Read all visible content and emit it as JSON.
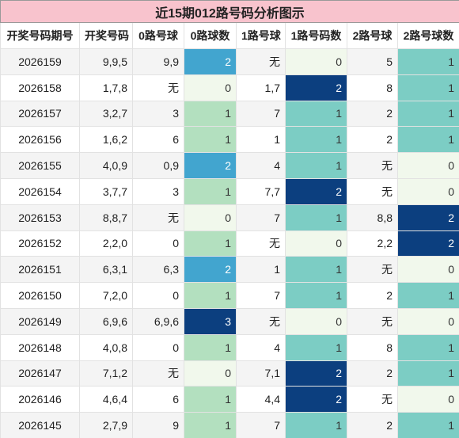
{
  "title": "近15期012路号码分析图示",
  "table": {
    "headers": [
      "开奖号码期号",
      "开奖号码",
      "0路号球",
      "0路球数",
      "1路号球",
      "1路号码数",
      "2路号球",
      "2路号球数"
    ],
    "rows": [
      [
        "2026159",
        "9,9,5",
        "9,9",
        2,
        "无",
        0,
        "5",
        1
      ],
      [
        "2026158",
        "1,7,8",
        "无",
        0,
        "1,7",
        2,
        "8",
        1
      ],
      [
        "2026157",
        "3,2,7",
        "3",
        1,
        "7",
        1,
        "2",
        1
      ],
      [
        "2026156",
        "1,6,2",
        "6",
        1,
        "1",
        1,
        "2",
        1
      ],
      [
        "2026155",
        "4,0,9",
        "0,9",
        2,
        "4",
        1,
        "无",
        0
      ],
      [
        "2026154",
        "3,7,7",
        "3",
        1,
        "7,7",
        2,
        "无",
        0
      ],
      [
        "2026153",
        "8,8,7",
        "无",
        0,
        "7",
        1,
        "8,8",
        2
      ],
      [
        "2026152",
        "2,2,0",
        "0",
        1,
        "无",
        0,
        "2,2",
        2
      ],
      [
        "2026151",
        "6,3,1",
        "6,3",
        2,
        "1",
        1,
        "无",
        0
      ],
      [
        "2026150",
        "7,2,0",
        "0",
        1,
        "7",
        1,
        "2",
        1
      ],
      [
        "2026149",
        "6,9,6",
        "6,9,6",
        3,
        "无",
        0,
        "无",
        0
      ],
      [
        "2026148",
        "4,0,8",
        "0",
        1,
        "4",
        1,
        "8",
        1
      ],
      [
        "2026147",
        "7,1,2",
        "无",
        0,
        "7,1",
        2,
        "2",
        1
      ],
      [
        "2026146",
        "4,6,4",
        "6",
        1,
        "4,4",
        2,
        "无",
        0
      ],
      [
        "2026145",
        "2,7,9",
        "9",
        1,
        "7",
        1,
        "2",
        1
      ]
    ]
  }
}
